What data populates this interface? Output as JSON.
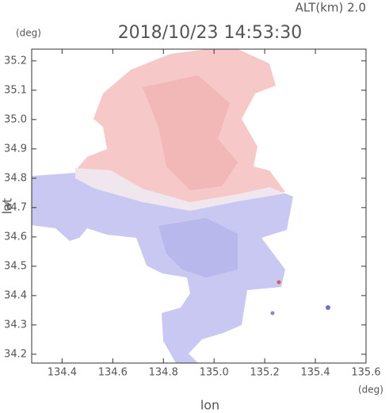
{
  "chart_data": {
    "type": "map",
    "title": "2018/10/23 14:53:30",
    "subtitle": "ALT(km)  2.0",
    "x_label": "lon",
    "y_label": "lat",
    "x_unit": "(deg)",
    "y_unit": "(deg)",
    "xlim": [
      134.28,
      135.6
    ],
    "ylim": [
      34.17,
      35.24
    ],
    "xticks": [
      134.4,
      134.6,
      134.8,
      {
        "value": 135,
        "label": "135.0"
      },
      135.2,
      135.4,
      135.6
    ],
    "yticks": [
      34.2,
      34.3,
      34.4,
      34.5,
      34.6,
      34.7,
      34.8,
      34.9,
      {
        "value": 35,
        "label": "35.0"
      },
      35.1,
      35.2
    ]
  }
}
